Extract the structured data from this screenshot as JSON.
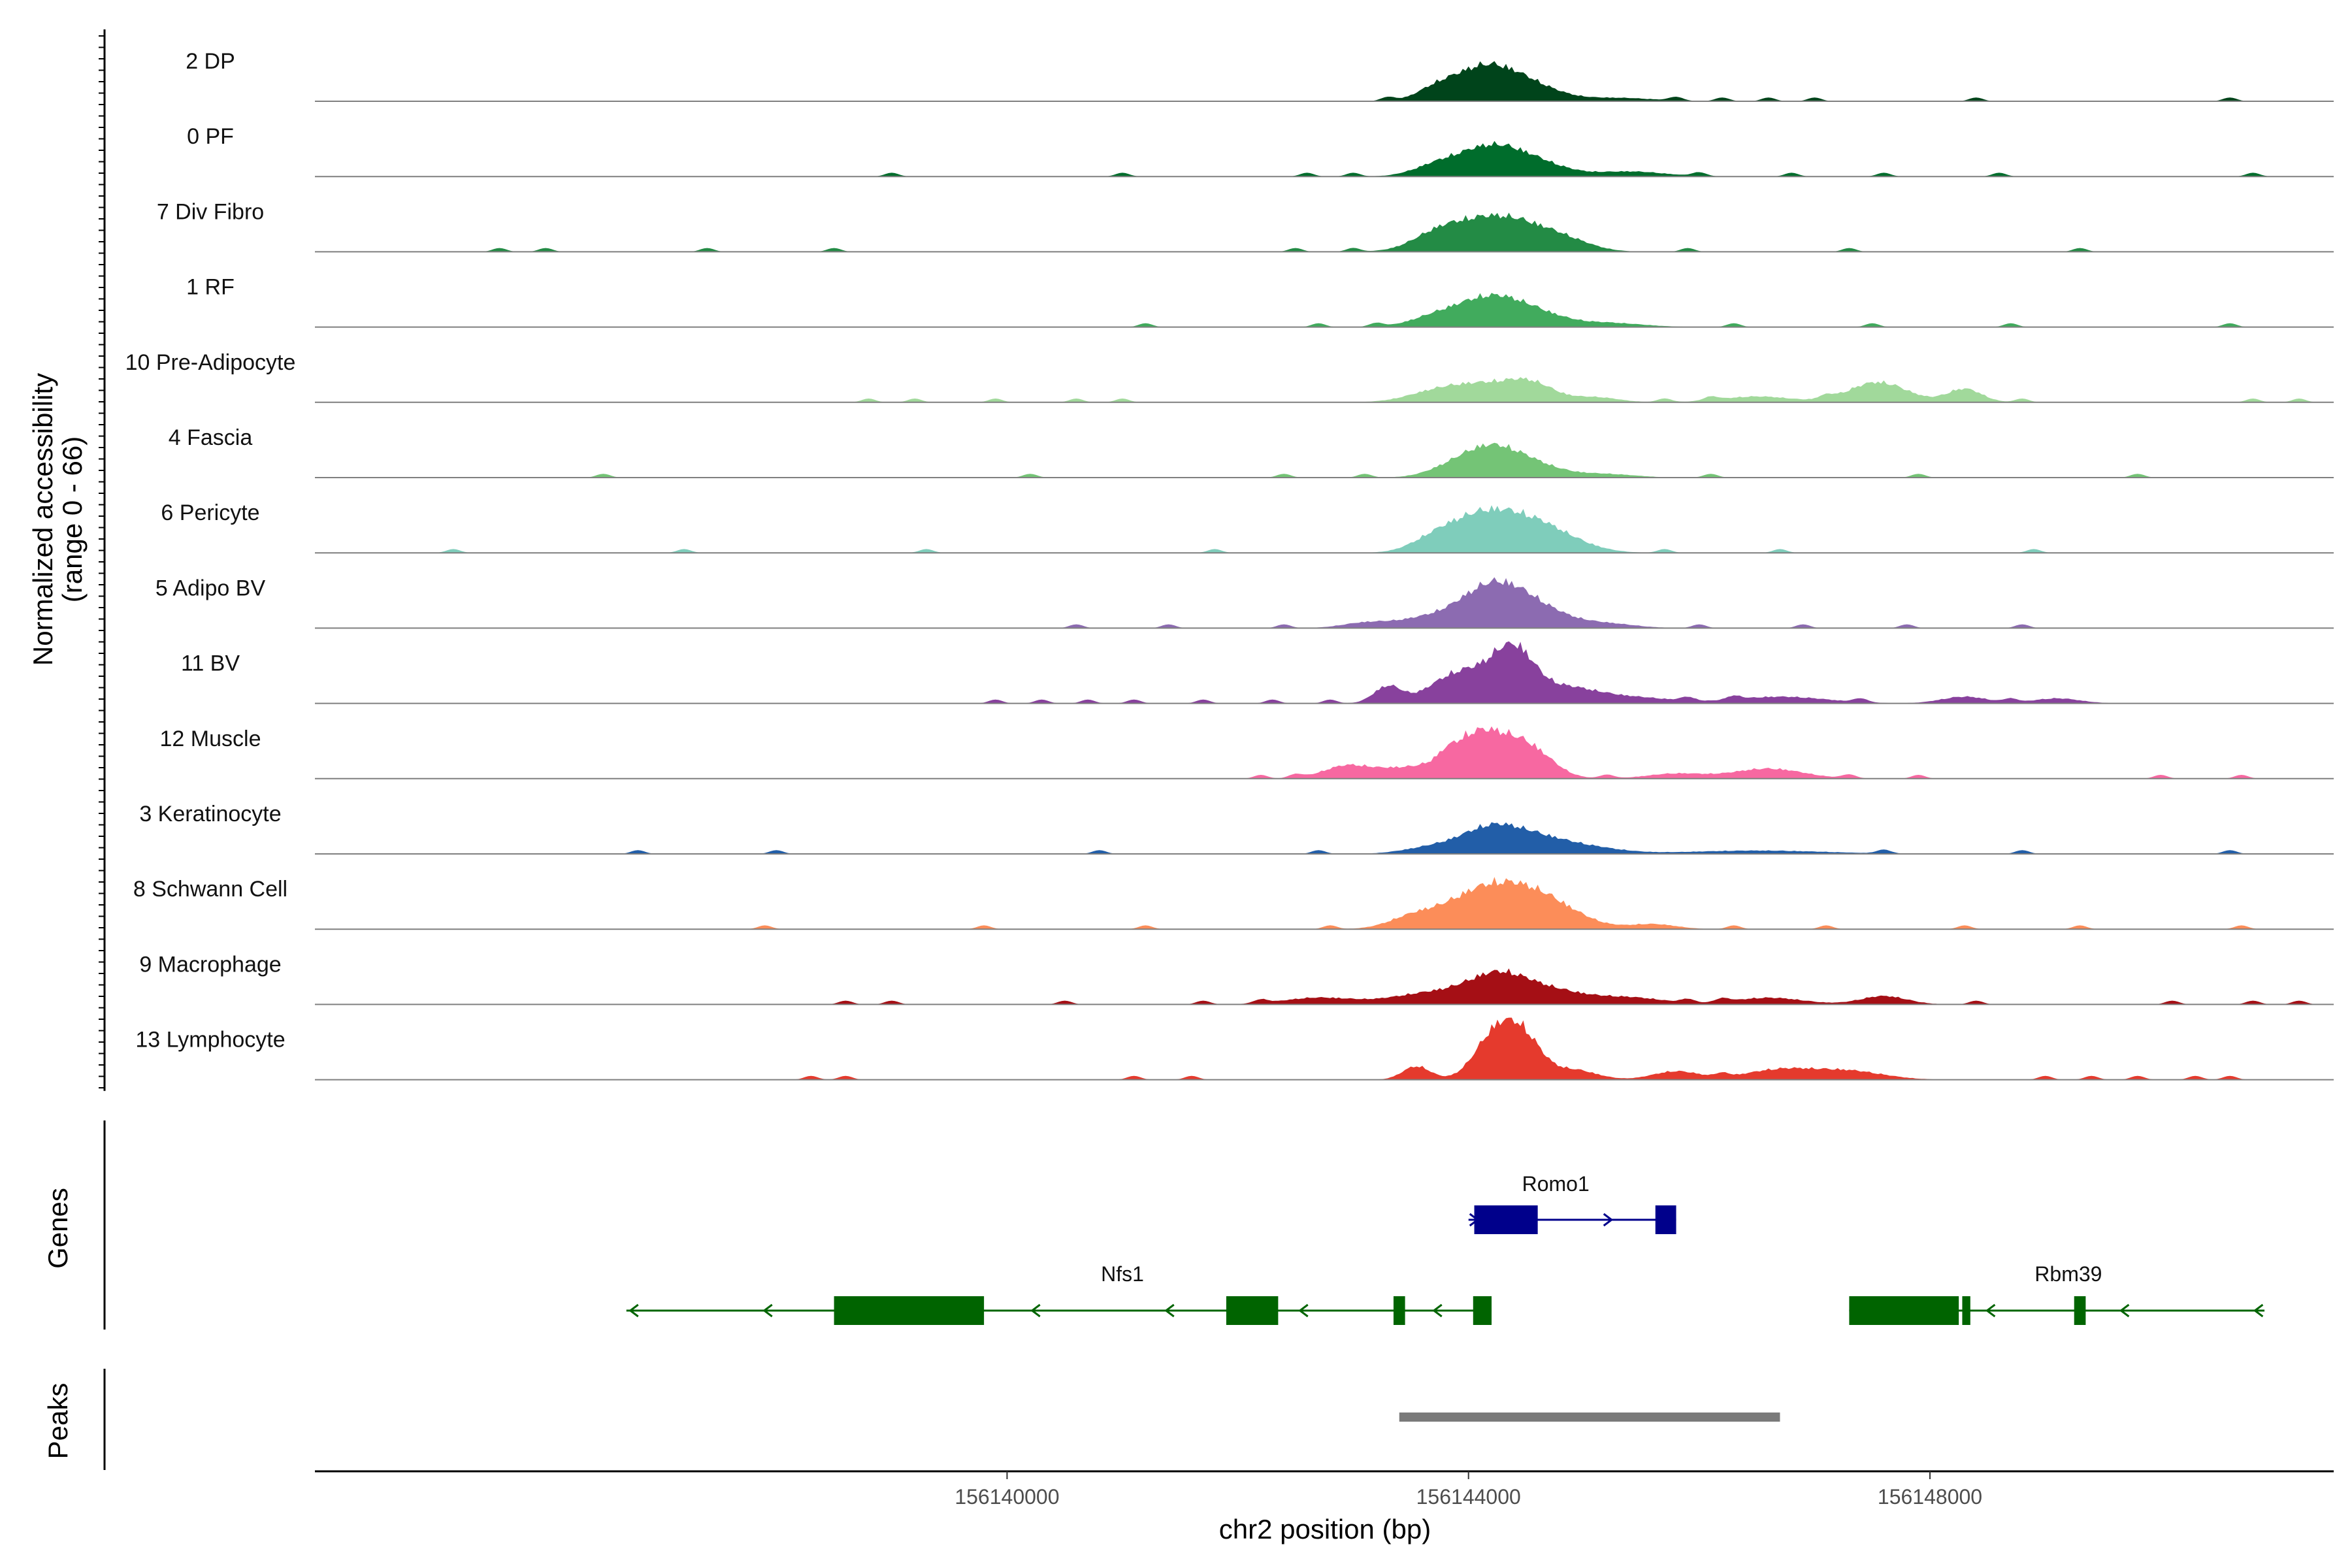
{
  "chart_data": {
    "type": "area",
    "title": "",
    "ylabel_line1": "Normalized accessibility",
    "ylabel_line2": "(range 0 - 66)",
    "ylim": [
      0,
      66
    ],
    "xlabel": "chr2 position (bp)",
    "xlim": [
      156134000,
      156151500
    ],
    "xticks": [
      156140000,
      156144000,
      156148000
    ],
    "xtick_labels": [
      "156140000",
      "156144000",
      "156148000"
    ],
    "tracks": [
      {
        "name": "2 DP",
        "color": "#00441b",
        "height": 1.0,
        "peaks": [
          [
            156144150,
            42,
            300
          ],
          [
            156143700,
            8,
            150
          ],
          [
            156144600,
            10,
            250
          ],
          [
            156145300,
            4,
            300
          ]
        ],
        "fragments": [
          156143300,
          156145800,
          156146200,
          156146600,
          156147000,
          156148400,
          156150600
        ]
      },
      {
        "name": "0 PF",
        "color": "#006d2c",
        "height": 1.0,
        "peaks": [
          [
            156144200,
            36,
            300
          ],
          [
            156143700,
            9,
            200
          ],
          [
            156144650,
            9,
            250
          ],
          [
            156145400,
            6,
            300
          ]
        ],
        "fragments": [
          156139000,
          156141000,
          156142600,
          156143000,
          156146000,
          156146800,
          156147600,
          156148600,
          156150800
        ]
      },
      {
        "name": "7 Div Fibro",
        "color": "#238b45",
        "height": 1.0,
        "peaks": [
          [
            156144150,
            38,
            350
          ],
          [
            156143700,
            11,
            200
          ],
          [
            156144600,
            14,
            280
          ],
          [
            156144900,
            6,
            220
          ]
        ],
        "fragments": [
          156135600,
          156136000,
          156137400,
          156138500,
          156142500,
          156143000,
          156145900,
          156147300,
          156149300
        ]
      },
      {
        "name": "1 RF",
        "color": "#41ab5d",
        "height": 1.0,
        "peaks": [
          [
            156144180,
            34,
            280
          ],
          [
            156143700,
            10,
            220
          ],
          [
            156144600,
            12,
            250
          ],
          [
            156145200,
            5,
            300
          ]
        ],
        "fragments": [
          156141200,
          156142700,
          156143200,
          156146300,
          156147500,
          156148700,
          156150600
        ]
      },
      {
        "name": "10 Pre-Adipocyte",
        "color": "#a1d99b",
        "height": 1.0,
        "peaks": [
          [
            156144150,
            20,
            300
          ],
          [
            156144550,
            18,
            200
          ],
          [
            156147550,
            24,
            250
          ],
          [
            156148300,
            16,
            150
          ],
          [
            156143700,
            10,
            250
          ],
          [
            156145100,
            6,
            200
          ],
          [
            156146500,
            7,
            300
          ]
        ],
        "fragments": [
          156138800,
          156139200,
          156139900,
          156140600,
          156141000,
          156145700,
          156146100,
          156147100,
          156148800,
          156150800,
          156151200
        ]
      },
      {
        "name": "4 Fascia",
        "color": "#74c476",
        "height": 1.0,
        "peaks": [
          [
            156144150,
            30,
            250
          ],
          [
            156144500,
            16,
            280
          ],
          [
            156143800,
            6,
            200
          ],
          [
            156145200,
            4,
            250
          ]
        ],
        "fragments": [
          156136500,
          156140200,
          156142400,
          156143100,
          156146100,
          156147900,
          156149800
        ]
      },
      {
        "name": "6 Pericyte",
        "color": "#7fcdbb",
        "height": 1.0,
        "peaks": [
          [
            156144150,
            46,
            300
          ],
          [
            156144600,
            22,
            250
          ],
          [
            156143700,
            12,
            200
          ],
          [
            156144900,
            8,
            250
          ]
        ],
        "fragments": [
          156135200,
          156137200,
          156139300,
          156141800,
          156145700,
          156146700,
          156148900
        ]
      },
      {
        "name": "5 Adipo BV",
        "color": "#8c6bb1",
        "height": 1.0,
        "peaks": [
          [
            156144200,
            48,
            280
          ],
          [
            156144600,
            18,
            280
          ],
          [
            156143600,
            10,
            250
          ],
          [
            156143100,
            6,
            200
          ],
          [
            156145200,
            5,
            250
          ]
        ],
        "fragments": [
          156140600,
          156141400,
          156142400,
          156146000,
          156146900,
          156147800,
          156148800
        ]
      },
      {
        "name": "11 BV",
        "color": "#88419d",
        "height": 1.0,
        "peaks": [
          [
            156144150,
            36,
            300
          ],
          [
            156144400,
            40,
            160
          ],
          [
            156143300,
            20,
            120
          ],
          [
            156143800,
            14,
            200
          ],
          [
            156144850,
            18,
            300
          ],
          [
            156145500,
            6,
            300
          ],
          [
            156146700,
            8,
            400
          ],
          [
            156148300,
            8,
            200
          ],
          [
            156149100,
            6,
            200
          ]
        ],
        "fragments": [
          156139900,
          156140300,
          156140700,
          156141100,
          156141700,
          156142300,
          156142800,
          156145900,
          156146300,
          156147400,
          156148700
        ]
      },
      {
        "name": "12 Muscle",
        "color": "#f768a1",
        "height": 1.0,
        "peaks": [
          [
            156144100,
            56,
            280
          ],
          [
            156144550,
            26,
            200
          ],
          [
            156143400,
            10,
            200
          ],
          [
            156143000,
            8,
            200
          ],
          [
            156146600,
            12,
            300
          ],
          [
            156142900,
            8,
            200
          ],
          [
            156145800,
            6,
            250
          ]
        ],
        "fragments": [
          156142200,
          156142500,
          156143800,
          156145200,
          156147300,
          156147900,
          156150000,
          156150700
        ]
      },
      {
        "name": "3 Keratinocyte",
        "color": "#225ea8",
        "height": 1.0,
        "peaks": [
          [
            156144200,
            30,
            250
          ],
          [
            156144600,
            14,
            250
          ],
          [
            156143700,
            8,
            250
          ],
          [
            156145000,
            8,
            300
          ],
          [
            156146500,
            4,
            600
          ]
        ],
        "fragments": [
          156136800,
          156138000,
          156140800,
          156142700,
          156147600,
          156148800,
          156150600
        ]
      },
      {
        "name": "8 Schwann Cell",
        "color": "#fc8d59",
        "height": 1.0,
        "peaks": [
          [
            156144200,
            50,
            380
          ],
          [
            156144700,
            20,
            300
          ],
          [
            156143500,
            10,
            200
          ],
          [
            156145600,
            6,
            200
          ]
        ],
        "fragments": [
          156137900,
          156139800,
          156141200,
          156142800,
          156146300,
          156147100,
          156148300,
          156149300,
          156150700
        ]
      },
      {
        "name": "9 Macrophage",
        "color": "#a50f15",
        "height": 1.0,
        "peaks": [
          [
            156144250,
            30,
            250
          ],
          [
            156143700,
            14,
            350
          ],
          [
            156144700,
            16,
            300
          ],
          [
            156145400,
            8,
            300
          ],
          [
            156147600,
            10,
            200
          ],
          [
            156146600,
            8,
            300
          ],
          [
            156142700,
            8,
            300
          ]
        ],
        "fragments": [
          156138600,
          156139000,
          156140500,
          156141700,
          156142200,
          156145900,
          156146200,
          156148400,
          156150100,
          156150800,
          156151200
        ]
      },
      {
        "name": "13 Lymphocyte",
        "color": "#e53a2d",
        "height": 1.0,
        "peaks": [
          [
            156144250,
            58,
            180
          ],
          [
            156144500,
            36,
            150
          ],
          [
            156143550,
            16,
            120
          ],
          [
            156144900,
            12,
            200
          ],
          [
            156146700,
            12,
            300
          ],
          [
            156147300,
            10,
            300
          ],
          [
            156145800,
            10,
            200
          ]
        ],
        "fragments": [
          156138300,
          156138600,
          156141100,
          156141600,
          156146200,
          156149000,
          156149400,
          156149800,
          156150300,
          156150600
        ]
      }
    ],
    "genes": {
      "title": "Genes",
      "items": [
        {
          "name": "Romo1",
          "row": 0,
          "strand": "+",
          "start": 156144000,
          "end": 156145800,
          "color": "#00008b",
          "exons": [
            [
              156144050,
              156144600
            ],
            [
              156145620,
              156145800
            ]
          ]
        },
        {
          "name": "Nfs1",
          "row": 1,
          "strand": "-",
          "start": 156136700,
          "end": 156144200,
          "color": "#006400",
          "exons": [
            [
              156138500,
              156139800
            ],
            [
              156141900,
              156142350
            ],
            [
              156143350,
              156143450
            ],
            [
              156144040,
              156144200
            ]
          ]
        },
        {
          "name": "Rbm39",
          "row": 1,
          "strand": "-",
          "start": 156147300,
          "end": 156150900,
          "color": "#006400",
          "exons": [
            [
              156147300,
              156148250
            ],
            [
              156148280,
              156148350
            ],
            [
              156149250,
              156149350
            ]
          ]
        }
      ]
    },
    "peaks_track": {
      "title": "Peaks",
      "color": "#7a7a7a",
      "regions": [
        [
          156143400,
          156146700
        ]
      ]
    }
  }
}
